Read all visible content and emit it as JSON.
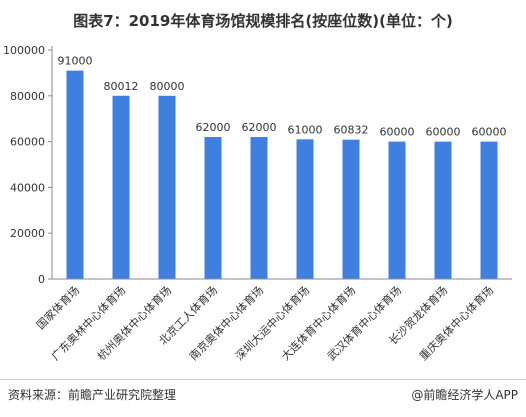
{
  "title": "图表7：2019年体育场馆规模排名(按座位数)(单位：个)",
  "footer": {
    "source": "资料来源：前瞻产业研究院整理",
    "brand": "@前瞻经济学人APP"
  },
  "colors": {
    "bar": "#3e7fdf",
    "axis": "#888888",
    "tick_label": "#333333",
    "value_label": "#333333"
  },
  "chart_data": {
    "type": "bar",
    "title": "图表7：2019年体育场馆规模排名(按座位数)(单位：个)",
    "xlabel": "",
    "ylabel": "",
    "ylim": [
      0,
      100000
    ],
    "yticks": [
      0,
      20000,
      40000,
      60000,
      80000,
      100000
    ],
    "grid": false,
    "legend": "none",
    "categories": [
      "国家体育场",
      "广东奥林中心体育场",
      "杭州奥体中心体育场",
      "北京工人体育场",
      "南京奥体中心体育场",
      "深圳大运中心体育场",
      "大连体育中心体育场",
      "武汉体育中心体育场",
      "长沙贺龙体育场",
      "重庆奥体中心体育场"
    ],
    "values": [
      91000,
      80012,
      80000,
      62000,
      62000,
      61000,
      60832,
      60000,
      60000,
      60000
    ],
    "value_labels": [
      "91000",
      "80012",
      "80000",
      "62000",
      "62000",
      "61000",
      "60832",
      "60000",
      "60000",
      "60000"
    ]
  }
}
